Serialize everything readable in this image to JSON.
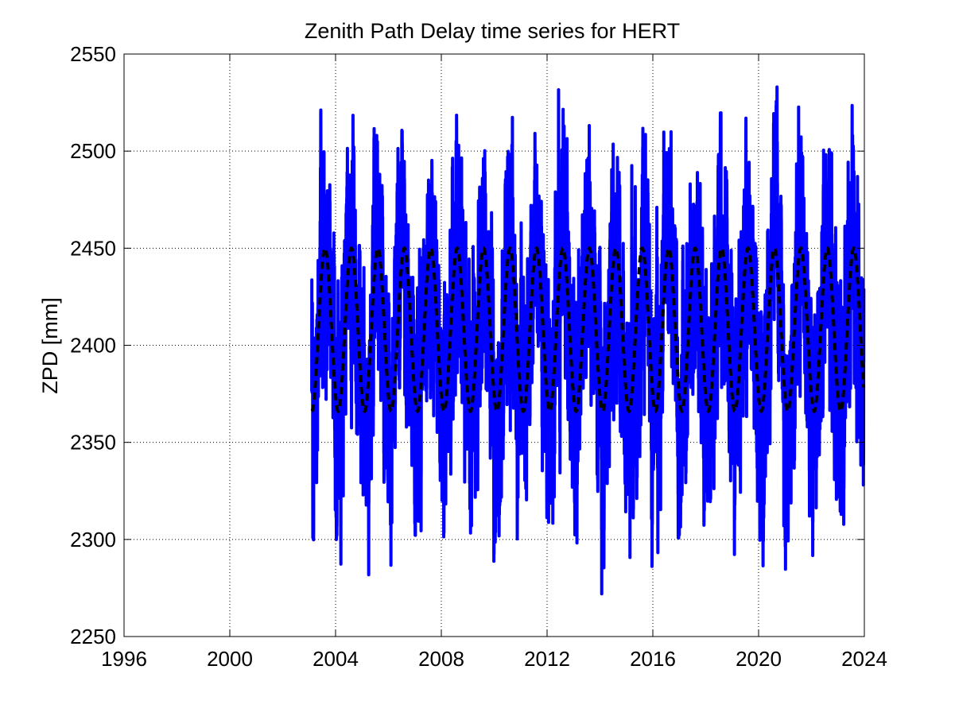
{
  "chart_data": {
    "type": "line",
    "title": "Zenith Path Delay time series for HERT",
    "xlabel": "",
    "ylabel": "ZPD [mm]",
    "xlim": [
      1996,
      2024
    ],
    "ylim": [
      2250,
      2550
    ],
    "xticks": [
      "1996",
      "2000",
      "2004",
      "2008",
      "2012",
      "2016",
      "2020",
      "2024"
    ],
    "yticks": [
      "2250",
      "2300",
      "2350",
      "2400",
      "2450",
      "2500",
      "2550"
    ],
    "grid": true,
    "legend": "none",
    "series": [
      {
        "style": "solid",
        "color": "#0000ff",
        "x_range": [
          2003.1,
          2023.98
        ],
        "seasonal_mean": 2408,
        "seasonal_amplitude": 42,
        "noise_envelope": 60,
        "y_min": 2272,
        "y_max": 2545
      },
      {
        "style": "dashed",
        "color": "#000000",
        "x_range": [
          2003.1,
          2023.98
        ],
        "model": "annual sinusoid",
        "mean": 2408,
        "amplitude": 42,
        "period_years": 1.0,
        "peak_phase_year_fraction": 0.6
      }
    ]
  }
}
